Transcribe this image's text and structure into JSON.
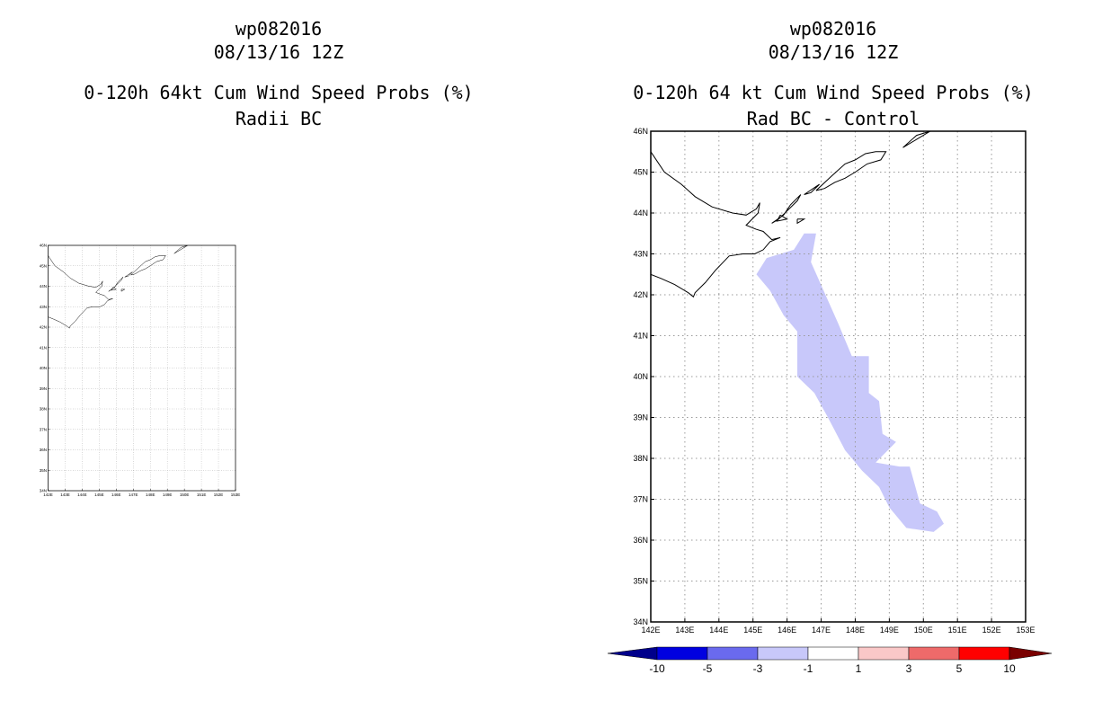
{
  "left_panel": {
    "name": "wp082016",
    "datetime": "08/13/16 12Z",
    "title": "0-120h 64kt Cum Wind Speed Probs (%)",
    "subtitle": "Radii BC"
  },
  "right_panel": {
    "name": "wp082016",
    "datetime": "08/13/16 12Z",
    "title": "0-120h 64 kt Cum Wind Speed Probs (%)",
    "subtitle": "Rad BC - Control"
  },
  "map": {
    "lon_range": [
      142,
      153
    ],
    "lat_range": [
      34,
      46
    ],
    "lon_labels": [
      "142E",
      "143E",
      "144E",
      "145E",
      "146E",
      "147E",
      "148E",
      "149E",
      "150E",
      "151E",
      "152E",
      "153E"
    ],
    "lat_labels": [
      "34N",
      "35N",
      "36N",
      "37N",
      "38N",
      "39N",
      "40N",
      "41N",
      "42N",
      "43N",
      "44N",
      "45N",
      "46N"
    ],
    "grid_color": "#9a9a9a",
    "coastline_color": "#000000"
  },
  "probability_region": {
    "fill": "#c8c8fa",
    "category": "-3 to -1",
    "polygon_lonlat": [
      [
        146.85,
        43.5
      ],
      [
        146.7,
        42.8
      ],
      [
        147.5,
        41.3
      ],
      [
        147.9,
        40.5
      ],
      [
        148.4,
        40.5
      ],
      [
        148.4,
        39.6
      ],
      [
        148.7,
        39.4
      ],
      [
        148.8,
        38.6
      ],
      [
        149.2,
        38.4
      ],
      [
        148.6,
        37.9
      ],
      [
        149.3,
        37.8
      ],
      [
        149.6,
        37.8
      ],
      [
        149.9,
        36.9
      ],
      [
        150.4,
        36.7
      ],
      [
        150.6,
        36.4
      ],
      [
        150.3,
        36.2
      ],
      [
        149.5,
        36.3
      ],
      [
        149.0,
        36.8
      ],
      [
        148.7,
        37.3
      ],
      [
        148.2,
        37.7
      ],
      [
        147.7,
        38.2
      ],
      [
        147.2,
        39.0
      ],
      [
        146.8,
        39.6
      ],
      [
        146.3,
        40.0
      ],
      [
        146.3,
        41.1
      ],
      [
        145.9,
        41.5
      ],
      [
        145.5,
        42.1
      ],
      [
        145.1,
        42.5
      ],
      [
        145.4,
        42.9
      ],
      [
        146.2,
        43.1
      ],
      [
        146.5,
        43.5
      ]
    ]
  },
  "colorbar": {
    "labels": [
      "-10",
      "-5",
      "-3",
      "-1",
      "1",
      "3",
      "5",
      "10"
    ],
    "colors": [
      "#0000e0",
      "#6a6aee",
      "#c8c8fa",
      "#ffffff",
      "#fac8c8",
      "#ee6a6a",
      "#ff0000"
    ],
    "min_arrow_color": "#00008b",
    "max_arrow_color": "#7a0000"
  },
  "coastlines": {
    "hokkaido_east": [
      [
        142.0,
        45.5
      ],
      [
        142.4,
        45.0
      ],
      [
        142.9,
        44.7
      ],
      [
        143.3,
        44.4
      ],
      [
        143.8,
        44.15
      ],
      [
        144.4,
        44.0
      ],
      [
        144.8,
        43.95
      ],
      [
        145.1,
        44.1
      ],
      [
        145.2,
        44.25
      ],
      [
        145.15,
        44.0
      ],
      [
        144.8,
        43.7
      ],
      [
        145.1,
        43.6
      ],
      [
        145.3,
        43.55
      ],
      [
        145.55,
        43.35
      ],
      [
        145.8,
        43.4
      ],
      [
        145.5,
        43.3
      ],
      [
        145.3,
        43.1
      ],
      [
        145.05,
        43.0
      ],
      [
        144.7,
        43.0
      ],
      [
        144.3,
        42.95
      ],
      [
        143.9,
        42.6
      ],
      [
        143.6,
        42.3
      ],
      [
        143.3,
        42.05
      ],
      [
        143.25,
        41.95
      ],
      [
        143.1,
        42.05
      ],
      [
        142.7,
        42.25
      ],
      [
        142.3,
        42.4
      ],
      [
        142.0,
        42.5
      ]
    ],
    "island_a": [
      [
        145.55,
        43.75
      ],
      [
        145.9,
        43.95
      ],
      [
        146.1,
        44.2
      ],
      [
        146.4,
        44.45
      ],
      [
        146.3,
        44.3
      ],
      [
        146.0,
        44.05
      ],
      [
        145.75,
        43.85
      ],
      [
        145.55,
        43.75
      ]
    ],
    "island_b": [
      [
        146.85,
        44.55
      ],
      [
        147.3,
        44.9
      ],
      [
        147.7,
        45.2
      ],
      [
        148.0,
        45.3
      ],
      [
        148.3,
        45.45
      ],
      [
        148.6,
        45.5
      ],
      [
        148.9,
        45.5
      ],
      [
        148.75,
        45.3
      ],
      [
        148.35,
        45.2
      ],
      [
        148.0,
        45.0
      ],
      [
        147.7,
        44.85
      ],
      [
        147.4,
        44.75
      ],
      [
        147.1,
        44.6
      ],
      [
        146.85,
        44.55
      ]
    ],
    "island_c": [
      [
        145.8,
        43.95
      ],
      [
        146.0,
        43.85
      ],
      [
        145.7,
        43.8
      ],
      [
        145.8,
        43.95
      ]
    ],
    "island_d": [
      [
        146.3,
        43.85
      ],
      [
        146.5,
        43.85
      ],
      [
        146.3,
        43.75
      ],
      [
        146.3,
        43.85
      ]
    ],
    "island_e": [
      [
        146.5,
        44.45
      ],
      [
        146.95,
        44.7
      ],
      [
        146.7,
        44.5
      ],
      [
        146.5,
        44.45
      ]
    ],
    "island_f": [
      [
        149.4,
        45.6
      ],
      [
        149.8,
        45.8
      ],
      [
        150.2,
        46.0
      ],
      [
        149.8,
        45.9
      ],
      [
        149.4,
        45.6
      ]
    ]
  }
}
